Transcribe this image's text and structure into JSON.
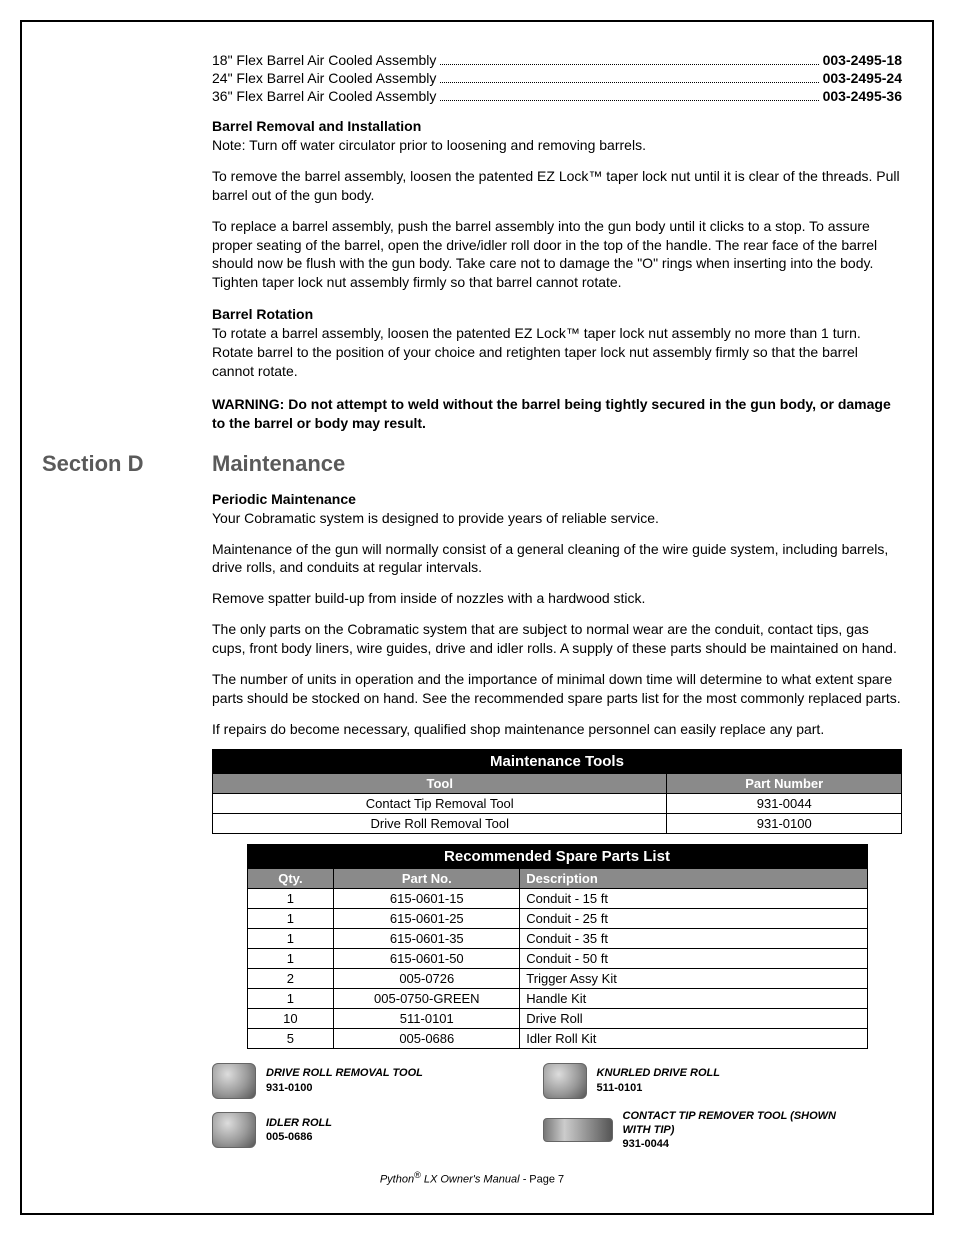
{
  "assemblies": [
    {
      "label": "18\" Flex Barrel Air Cooled Assembly",
      "pn": "003-2495-18"
    },
    {
      "label": "24\" Flex Barrel Air Cooled Assembly",
      "pn": "003-2495-24"
    },
    {
      "label": "36\" Flex Barrel Air Cooled Assembly",
      "pn": "003-2495-36"
    }
  ],
  "barrel_removal": {
    "heading": "Barrel Removal and Installation",
    "note": "Note: Turn off water circulator prior to loosening and removing barrels.",
    "p1": "To remove the barrel assembly, loosen the patented EZ Lock™ taper lock nut until it is clear of the threads.  Pull barrel out of the gun body.",
    "p2": "To replace a barrel assembly, push the barrel assembly into the gun body until it clicks to a stop. To assure proper seating of the barrel, open the drive/idler roll door in the top of the handle. The rear face of the barrel should now be flush with the gun body. Take care not to damage the \"O\" rings when inserting into the body. Tighten taper lock nut assembly firmly so that barrel cannot rotate."
  },
  "barrel_rotation": {
    "heading": "Barrel Rotation",
    "p1": "To rotate a barrel assembly, loosen the patented EZ Lock™ taper lock nut assembly no more than 1 turn.  Rotate barrel to the position of your choice and retighten taper lock nut assembly firmly so that the barrel cannot rotate."
  },
  "warning": "WARNING:  Do not attempt to weld without the barrel being tightly secured in the gun body, or damage to the barrel or body may result.",
  "section_d": {
    "label": "Section D",
    "heading": "Maintenance"
  },
  "periodic": {
    "heading": "Periodic Maintenance",
    "p1": "Your Cobramatic system is designed to provide years of reliable service.",
    "p2": "Maintenance of the gun will normally consist of a general cleaning of the wire guide system, including barrels, drive rolls, and conduits at regular intervals.",
    "p3": "Remove spatter build-up from inside of nozzles with a hardwood stick.",
    "p4": "The only parts on the Cobramatic system that are subject to normal wear are the conduit, contact tips, gas cups, front body liners, wire guides, drive and idler rolls.  A supply of these parts should be maintained on hand.",
    "p5": "The number of units in operation and the importance of minimal down time will determine to what extent spare parts should be stocked on hand.  See the recommended spare parts list for the most commonly replaced parts.",
    "p6": "If repairs do become necessary, qualified shop maintenance personnel can easily replace any part."
  },
  "maint_tools": {
    "title": "Maintenance Tools",
    "col_tool": "Tool",
    "col_pn": "Part Number",
    "rows": [
      {
        "tool": "Contact Tip Removal Tool",
        "pn": "931-0044"
      },
      {
        "tool": "Drive Roll Removal Tool",
        "pn": "931-0100"
      }
    ]
  },
  "spare_parts": {
    "title": "Recommended Spare Parts List",
    "col_qty": "Qty.",
    "col_pn": "Part No.",
    "col_desc": "Description",
    "rows": [
      {
        "qty": "1",
        "pn": "615-0601-15",
        "desc": "Conduit - 15 ft"
      },
      {
        "qty": "1",
        "pn": "615-0601-25",
        "desc": "Conduit - 25 ft"
      },
      {
        "qty": "1",
        "pn": "615-0601-35",
        "desc": "Conduit - 35 ft"
      },
      {
        "qty": "1",
        "pn": "615-0601-50",
        "desc": "Conduit - 50 ft"
      },
      {
        "qty": "2",
        "pn": "005-0726",
        "desc": "Trigger Assy Kit"
      },
      {
        "qty": "1",
        "pn": "005-0750-GREEN",
        "desc": "Handle Kit"
      },
      {
        "qty": "10",
        "pn": "511-0101",
        "desc": "Drive Roll"
      },
      {
        "qty": "5",
        "pn": "005-0686",
        "desc": "Idler Roll Kit"
      }
    ]
  },
  "part_items": [
    {
      "name": "DRIVE ROLL REMOVAL TOOL",
      "pn": "931-0100",
      "shape": "round"
    },
    {
      "name": "KNURLED DRIVE ROLL",
      "pn": "511-0101",
      "shape": "round"
    },
    {
      "name": "IDLER ROLL",
      "pn": "005-0686",
      "shape": "round"
    },
    {
      "name": "CONTACT TIP REMOVER TOOL (SHOWN WITH TIP)",
      "pn": "931-0044",
      "shape": "long"
    }
  ],
  "footer": {
    "brand": "Python",
    "reg": "®",
    "rest": " LX Owner's Manual - ",
    "page": "Page 7"
  },
  "colors": {
    "border": "#000000",
    "heading_gray": "#5a5a5a",
    "table_title_bg": "#000000",
    "table_header_bg": "#8a8a8a",
    "table_header_fg": "#ffffff"
  }
}
